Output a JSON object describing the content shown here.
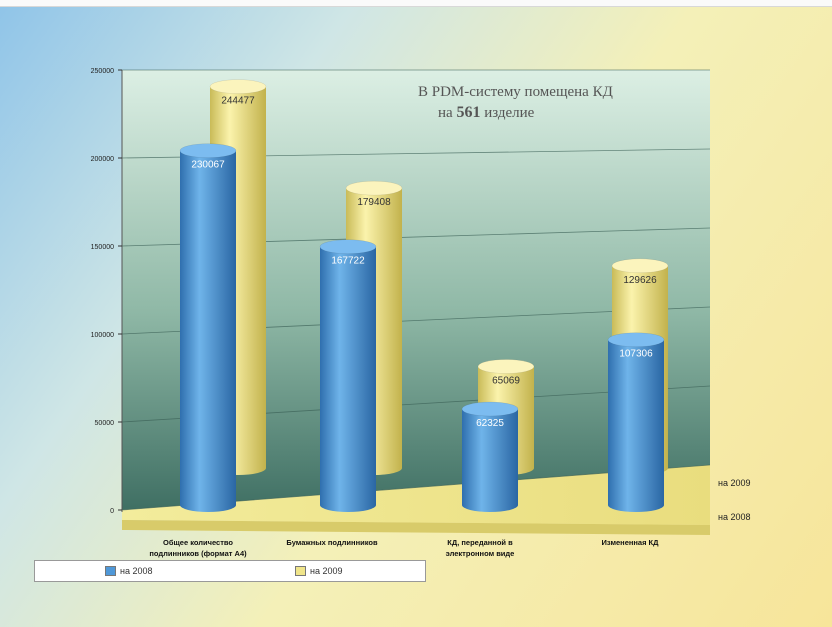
{
  "chart_data": {
    "type": "bar",
    "style": "3d-cylinder",
    "annotation": {
      "line1": "В PDM-систему  помещена КД",
      "line2_pre": "на ",
      "line2_num": "561",
      "line2_post": " изделие"
    },
    "categories": [
      [
        "Общее количество",
        "подлинников (формат А4)"
      ],
      [
        "Бумажных подлинников"
      ],
      [
        "КД, переданной в",
        "электронном виде"
      ],
      [
        "Измененная КД"
      ]
    ],
    "series": [
      {
        "name": "на 2008",
        "color": "#4f98d8",
        "values": [
          230067,
          167722,
          62325,
          107306
        ],
        "labels": [
          "230067",
          "167722",
          "62325",
          "107306"
        ]
      },
      {
        "name": "на 2009",
        "color": "#f0e58a",
        "values": [
          244477,
          179408,
          65069,
          129626
        ],
        "labels": [
          "244477",
          "179408",
          "65069",
          "129626"
        ]
      }
    ],
    "depth_labels": [
      "на 2009",
      "на 2008"
    ],
    "y_ticks": [
      "0",
      "50000",
      "100000",
      "150000",
      "200000",
      "250000"
    ],
    "ylim": [
      0,
      250000
    ],
    "legend": {
      "position": "bottom-left",
      "items": [
        "на 2008",
        "на 2009"
      ]
    }
  }
}
